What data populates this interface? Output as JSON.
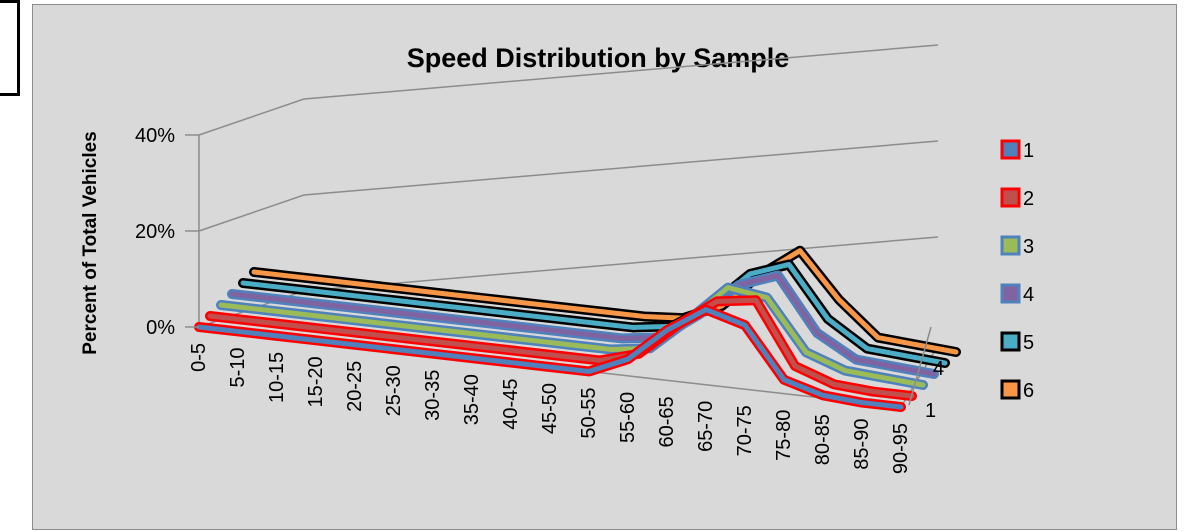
{
  "chart_data": {
    "type": "line",
    "style": "3d-line",
    "title": "Speed Distribution by Sample",
    "xlabel": "",
    "ylabel": "Percent of Total Vehicles",
    "ylim": [
      0,
      0.4
    ],
    "yticks": [
      "0%",
      "20%",
      "40%"
    ],
    "categories": [
      "0-5",
      "5-10",
      "10-15",
      "15-20",
      "20-25",
      "25-30",
      "30-35",
      "35-40",
      "40-45",
      "45-50",
      "50-55",
      "55-60",
      "60-65",
      "65-70",
      "70-75",
      "75-80",
      "80-85",
      "85-90",
      "90-95"
    ],
    "depth_ticks": [
      "1",
      "4"
    ],
    "grid": true,
    "legend_position": "right",
    "series": [
      {
        "name": "1",
        "color": "#4f81bd",
        "outline": "#ff0000",
        "values": [
          0,
          0,
          0,
          0,
          0,
          0,
          0,
          0,
          0,
          0,
          0,
          0.06,
          0.18,
          0.27,
          0.23,
          0.05,
          0.01,
          0,
          0
        ]
      },
      {
        "name": "2",
        "color": "#c0504d",
        "outline": "#ff0000",
        "values": [
          0,
          0,
          0,
          0,
          0,
          0,
          0,
          0,
          0,
          0,
          0,
          0.04,
          0.16,
          0.26,
          0.28,
          0.06,
          0.01,
          0,
          0
        ]
      },
      {
        "name": "3",
        "color": "#9bbb59",
        "outline": "#4f81bd",
        "values": [
          0,
          0,
          0,
          0,
          0,
          0,
          0,
          0,
          0,
          0,
          0,
          0.02,
          0.14,
          0.27,
          0.25,
          0.07,
          0.02,
          0.01,
          0
        ]
      },
      {
        "name": "4",
        "color": "#8064a2",
        "outline": "#4f81bd",
        "values": [
          0,
          0,
          0,
          0,
          0,
          0,
          0,
          0,
          0,
          0,
          0,
          0.02,
          0.12,
          0.24,
          0.29,
          0.1,
          0.02,
          0.01,
          0
        ]
      },
      {
        "name": "5",
        "color": "#4bacc6",
        "outline": "#000000",
        "values": [
          0,
          0,
          0,
          0,
          0,
          0,
          0,
          0,
          0,
          0,
          0,
          0.02,
          0.11,
          0.24,
          0.29,
          0.11,
          0.02,
          0.01,
          0
        ]
      },
      {
        "name": "6",
        "color": "#f79646",
        "outline": "#000000",
        "values": [
          0,
          0,
          0,
          0,
          0,
          0,
          0,
          0,
          0,
          0,
          0,
          0.01,
          0.07,
          0.2,
          0.3,
          0.14,
          0.02,
          0.01,
          0
        ]
      }
    ]
  }
}
